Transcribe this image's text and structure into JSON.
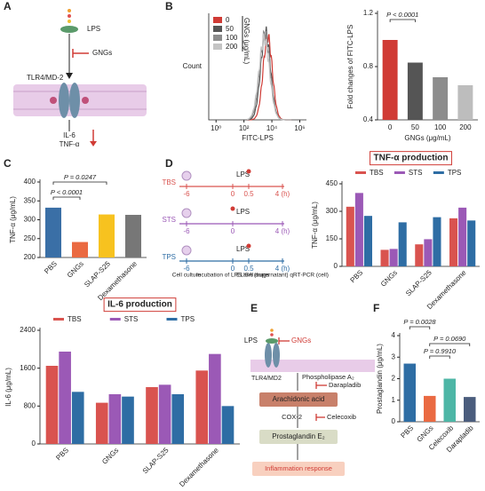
{
  "panel_labels": [
    "A",
    "B",
    "C",
    "D",
    "E",
    "F"
  ],
  "panel_a": {
    "lps": "LPS",
    "gngs": "GNGs",
    "receptor": "TLR4/MD-2",
    "out1": "IL-6",
    "out2": "TNF-α"
  },
  "panel_b_histogram": {
    "type": "histogram",
    "x_label": "FITC-LPS",
    "y_label": "Count",
    "legend_title": "GNGs (μg/mL)",
    "log_scale": true,
    "xlim": [
      0.3,
      3000000
    ],
    "xticks": [
      {
        "value": 1,
        "label": "10⁰"
      },
      {
        "value": 100,
        "label": "10²"
      },
      {
        "value": 10000,
        "label": "10⁴"
      },
      {
        "value": 1000000,
        "label": "10⁶"
      }
    ],
    "series": [
      {
        "name": "0",
        "color": "#d03b35"
      },
      {
        "name": "50",
        "color": "#555555"
      },
      {
        "name": "100",
        "color": "#8c8c8c"
      },
      {
        "name": "200",
        "color": "#c4c4c4"
      }
    ]
  },
  "panel_b_bar": {
    "type": "bar",
    "y_label": "Fold changes of FITC-LPS",
    "x_label": "GNGs (μg/mL)",
    "categories": [
      "0",
      "50",
      "100",
      "200"
    ],
    "values": [
      1.0,
      0.83,
      0.72,
      0.66
    ],
    "colors": [
      "#d03b35",
      "#555555",
      "#8c8c8c",
      "#bdbdbd"
    ],
    "ylim": [
      0.4,
      1.2
    ],
    "yticks": [
      0.4,
      0.8,
      1.2
    ],
    "annotations": [
      "P < 0.0001"
    ]
  },
  "panel_c": {
    "type": "bar",
    "y_label": "TNF-α (μg/mL)",
    "categories": [
      "PBS",
      "GNGs",
      "SLAP-S25",
      "Dexamethasone"
    ],
    "values": [
      332,
      241,
      314,
      313
    ],
    "colors": [
      "#3a6fa6",
      "#ea6a42",
      "#f7c21f",
      "#777777"
    ],
    "ylim": [
      200,
      400
    ],
    "yticks": [
      200,
      250,
      300,
      350,
      400
    ],
    "annotations": [
      "P < 0.0001",
      "P = 0.0247"
    ]
  },
  "panel_d_timeline": {
    "rows": [
      {
        "name": "TBS",
        "color": "#d9534f",
        "ticks": [
          "-6",
          "0",
          "0.5",
          "4 (h)"
        ]
      },
      {
        "name": "STS",
        "color": "#9b59b6",
        "ticks": [
          "-6",
          "0",
          "4 (h)"
        ]
      },
      {
        "name": "TPS",
        "color": "#2e6da4",
        "ticks": [
          "-6",
          "0",
          "0.5",
          "4 (h)"
        ]
      }
    ],
    "lps": "LPS",
    "steps": [
      "Cell culture",
      "Incubation of LPS and drugs",
      "ELISA (supernatant) qRT-PCR (cell)"
    ]
  },
  "panel_d_tnf": {
    "type": "bar",
    "title": "TNF-α production",
    "y_label": "TNF-α (μg/mL)",
    "categories": [
      "PBS",
      "GNGs",
      "SLAP-S25",
      "Dexamethasone"
    ],
    "ylim": [
      0,
      450
    ],
    "yticks": [
      0,
      150,
      300,
      450
    ],
    "series": [
      {
        "name": "TBS",
        "color": "#d9534f",
        "values": [
          325,
          90,
          120,
          262
        ]
      },
      {
        "name": "STS",
        "color": "#9b59b6",
        "values": [
          400,
          95,
          148,
          320
        ]
      },
      {
        "name": "TPS",
        "color": "#2e6da4",
        "values": [
          275,
          240,
          268,
          250
        ]
      }
    ]
  },
  "panel_il6": {
    "type": "bar",
    "title": "IL-6 production",
    "y_label": "IL-6 (μg/mL)",
    "categories": [
      "PBS",
      "GNGs",
      "SLAP-S25",
      "Dexamethasone"
    ],
    "ylim": [
      0,
      2400
    ],
    "yticks": [
      0,
      800,
      1600,
      2400
    ],
    "series": [
      {
        "name": "TBS",
        "color": "#d9534f",
        "values": [
          1650,
          870,
          1200,
          1550
        ]
      },
      {
        "name": "STS",
        "color": "#9b59b6",
        "values": [
          1950,
          1050,
          1250,
          1900
        ]
      },
      {
        "name": "TPS",
        "color": "#2e6da4",
        "values": [
          1100,
          1000,
          1050,
          800
        ]
      }
    ]
  },
  "panel_e": {
    "lps": "LPS",
    "gngs": "GNGs",
    "receptor": "TLR4/MD2",
    "enzyme1": "Phospholipase A₂",
    "node1": "Arachidonic acid",
    "enzyme2": "COX-2",
    "node2": "Prostaglandin E₂",
    "node3": "Inflammation response",
    "inhibitor1": "Darapladib",
    "inhibitor2": "Celecoxib"
  },
  "panel_f": {
    "type": "bar",
    "y_label": "Prostaglandin (μg/mL)",
    "categories": [
      "PBS",
      "GNGs",
      "Celecoxib",
      "Darapladib"
    ],
    "values": [
      2.7,
      1.2,
      2.0,
      1.15
    ],
    "colors": [
      "#2e6da4",
      "#ea6a42",
      "#4db6a6",
      "#4b5d7d"
    ],
    "ylim": [
      0,
      4
    ],
    "yticks": [
      0,
      1,
      2,
      3,
      4
    ],
    "annotations": [
      "P = 0.0028",
      "P = 0.0690",
      "P = 0.9910"
    ]
  }
}
